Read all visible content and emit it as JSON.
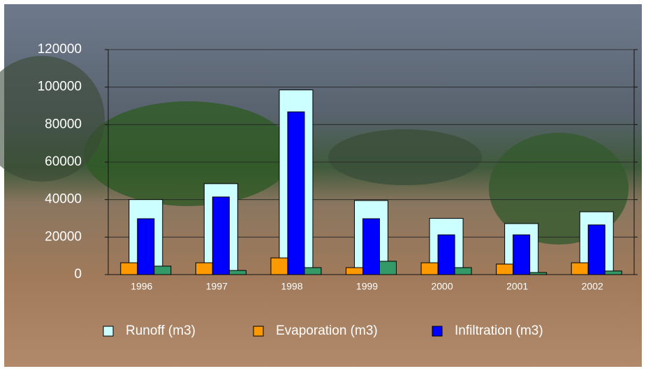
{
  "chart_data": {
    "type": "bar",
    "categories": [
      "1996",
      "1997",
      "1998",
      "1999",
      "2000",
      "2001",
      "2002"
    ],
    "series": [
      {
        "name": "Runoff (m3)",
        "color": "#ccffff",
        "values": [
          40000,
          48500,
          98500,
          39500,
          30000,
          27200,
          33500
        ]
      },
      {
        "name": "Evaporation (m3)",
        "color": "#ff9900",
        "values": [
          6300,
          6300,
          8900,
          3700,
          6300,
          5600,
          6300
        ]
      },
      {
        "name": "Infiltration (m3)",
        "color": "#0000ff",
        "values": [
          29800,
          41400,
          86800,
          29800,
          21200,
          21200,
          26500
        ]
      },
      {
        "color": "#339966",
        "values": [
          4500,
          2200,
          3700,
          7100,
          3700,
          1100,
          1900
        ]
      }
    ],
    "ylim": [
      0,
      120000
    ],
    "yticks": [
      0,
      20000,
      40000,
      60000,
      80000,
      100000,
      120000
    ],
    "grid": true,
    "legend": "bottom"
  }
}
